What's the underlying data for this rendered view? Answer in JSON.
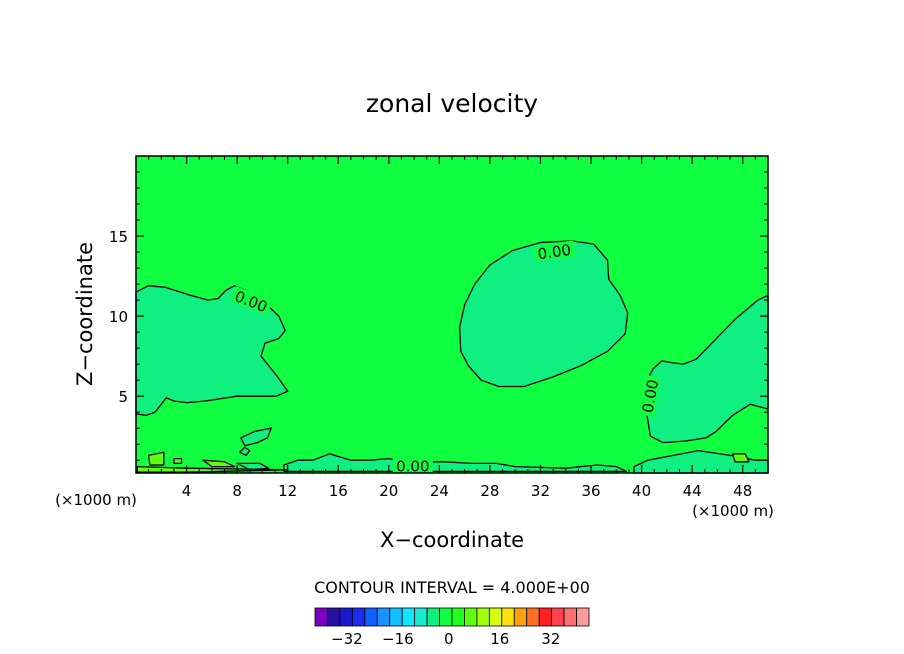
{
  "chart_data": {
    "type": "contour",
    "title": "zonal velocity",
    "xlabel": "X−coordinate",
    "ylabel": "Z−coordinate",
    "x_unit_left": "(×1000 m)",
    "x_unit_right": "(×1000 m)",
    "xlim": [
      0,
      50
    ],
    "ylim": [
      0.2,
      20
    ],
    "x_ticks": [
      4,
      8,
      12,
      16,
      20,
      24,
      28,
      32,
      36,
      40,
      44,
      48
    ],
    "y_ticks": [
      5,
      10,
      15
    ],
    "contour_interval_text": "CONTOUR INTERVAL = 4.000E+00",
    "contour_labels": [
      {
        "text": "0.00",
        "x": 9.1,
        "z": 10.9
      },
      {
        "text": "0.00",
        "x": 33.1,
        "z": 14.0
      },
      {
        "text": "0.00",
        "x": 40.7,
        "z": 5.0
      },
      {
        "text": "0.00",
        "x": 21.9,
        "z": 0.6
      }
    ],
    "regions": [
      {
        "name": "left-cell",
        "level": 0,
        "points": [
          [
            0,
            11.5
          ],
          [
            1,
            11.9
          ],
          [
            2.3,
            11.8
          ],
          [
            4.3,
            11.3
          ],
          [
            5.7,
            11.0
          ],
          [
            6.5,
            11.1
          ],
          [
            7.1,
            11.6
          ],
          [
            7.8,
            11.9
          ],
          [
            8.7,
            11.6
          ],
          [
            10.1,
            10.9
          ],
          [
            11.3,
            10.0
          ],
          [
            11.8,
            9.1
          ],
          [
            11.3,
            8.6
          ],
          [
            10.2,
            8.3
          ],
          [
            9.9,
            7.5
          ],
          [
            10.6,
            6.8
          ],
          [
            11.2,
            6.2
          ],
          [
            12.0,
            5.3
          ],
          [
            11.1,
            5.0
          ],
          [
            9.3,
            5.0
          ],
          [
            8.0,
            5.0
          ],
          [
            5.5,
            4.7
          ],
          [
            4.0,
            4.6
          ],
          [
            3.0,
            4.7
          ],
          [
            2.4,
            4.9
          ],
          [
            1.5,
            4.0
          ],
          [
            0.8,
            3.8
          ],
          [
            0,
            3.9
          ]
        ]
      },
      {
        "name": "central-cell",
        "level": 0,
        "points": [
          [
            25.6,
            9.3
          ],
          [
            26.0,
            10.7
          ],
          [
            26.8,
            12.0
          ],
          [
            28.0,
            13.2
          ],
          [
            29.8,
            14.1
          ],
          [
            32.0,
            14.6
          ],
          [
            34.5,
            14.7
          ],
          [
            36.2,
            14.5
          ],
          [
            37.3,
            13.5
          ],
          [
            37.4,
            12.3
          ],
          [
            38.3,
            11.3
          ],
          [
            38.9,
            10.2
          ],
          [
            38.7,
            8.9
          ],
          [
            37.3,
            7.8
          ],
          [
            35.2,
            6.9
          ],
          [
            33.0,
            6.2
          ],
          [
            30.7,
            5.6
          ],
          [
            28.7,
            5.6
          ],
          [
            27.3,
            6.0
          ],
          [
            26.3,
            6.9
          ],
          [
            25.7,
            7.8
          ]
        ]
      },
      {
        "name": "right-cell",
        "level": 0,
        "points": [
          [
            50,
            11.3
          ],
          [
            49.2,
            11.0
          ],
          [
            47.4,
            9.8
          ],
          [
            45.8,
            8.5
          ],
          [
            44.3,
            7.3
          ],
          [
            43.3,
            7.0
          ],
          [
            42.3,
            7.1
          ],
          [
            41.6,
            7.2
          ],
          [
            40.9,
            6.7
          ],
          [
            40.3,
            5.8
          ],
          [
            40.4,
            3.9
          ],
          [
            40.7,
            2.5
          ],
          [
            41.7,
            2.1
          ],
          [
            43.5,
            2.2
          ],
          [
            45.1,
            2.4
          ],
          [
            45.9,
            2.8
          ],
          [
            47.2,
            3.8
          ],
          [
            48.6,
            4.5
          ],
          [
            50,
            4.2
          ]
        ]
      },
      {
        "name": "bottom-band",
        "level": 0,
        "points": [
          [
            11.7,
            0.7
          ],
          [
            12.8,
            1.0
          ],
          [
            14.0,
            1.0
          ],
          [
            15.3,
            1.4
          ],
          [
            17.0,
            1.0
          ],
          [
            18.5,
            1.0
          ],
          [
            20.0,
            1.1
          ],
          [
            22.0,
            0.9
          ],
          [
            24.4,
            0.9
          ],
          [
            26.5,
            0.8
          ],
          [
            28.5,
            0.8
          ],
          [
            30.0,
            0.6
          ],
          [
            34.0,
            0.5
          ],
          [
            36.5,
            0.7
          ],
          [
            38.0,
            0.6
          ],
          [
            38.8,
            0.3
          ],
          [
            11.7,
            0.3
          ]
        ]
      },
      {
        "name": "bottom-right-band",
        "level": 0,
        "points": [
          [
            39.4,
            0.6
          ],
          [
            40.5,
            1.0
          ],
          [
            42.5,
            1.3
          ],
          [
            44.5,
            1.6
          ],
          [
            47.0,
            1.3
          ],
          [
            49.0,
            1.0
          ],
          [
            50,
            1.0
          ],
          [
            50,
            0.2
          ],
          [
            39.4,
            0.2
          ]
        ]
      },
      {
        "name": "blob-a",
        "level": 0,
        "points": [
          [
            8.3,
            2.4
          ],
          [
            9.4,
            2.8
          ],
          [
            10.7,
            3.0
          ],
          [
            10.4,
            2.4
          ],
          [
            9.6,
            2.1
          ],
          [
            8.6,
            1.9
          ]
        ]
      },
      {
        "name": "blob-b",
        "level": 0,
        "points": [
          [
            8.2,
            1.5
          ],
          [
            8.6,
            1.8
          ],
          [
            9.0,
            1.6
          ],
          [
            8.7,
            1.3
          ]
        ]
      },
      {
        "name": "blob-c",
        "level": 0,
        "points": [
          [
            8.0,
            0.8
          ],
          [
            9.8,
            0.8
          ],
          [
            10.5,
            0.5
          ],
          [
            9.0,
            0.4
          ]
        ]
      },
      {
        "name": "blob-d",
        "level": 4,
        "points": [
          [
            1.0,
            1.3
          ],
          [
            2.2,
            1.5
          ],
          [
            2.2,
            0.7
          ],
          [
            1.1,
            0.7
          ]
        ]
      },
      {
        "name": "blob-e",
        "level": 4,
        "points": [
          [
            5.3,
            1.0
          ],
          [
            7.0,
            0.9
          ],
          [
            7.8,
            0.6
          ],
          [
            6.0,
            0.6
          ]
        ]
      },
      {
        "name": "blob-f",
        "level": 4,
        "points": [
          [
            47.2,
            1.4
          ],
          [
            48.2,
            1.4
          ],
          [
            48.5,
            0.9
          ],
          [
            47.4,
            0.9
          ]
        ]
      },
      {
        "name": "blob-g",
        "level": 4,
        "points": [
          [
            3.0,
            1.1
          ],
          [
            3.6,
            1.1
          ],
          [
            3.6,
            0.8
          ],
          [
            3.0,
            0.8
          ]
        ]
      },
      {
        "name": "blob-h",
        "level": 4,
        "points": [
          [
            0.1,
            0.6
          ],
          [
            4.0,
            0.5
          ],
          [
            12.0,
            0.4
          ],
          [
            4.0,
            0.25
          ],
          [
            0.1,
            0.25
          ]
        ]
      }
    ],
    "colorbar": {
      "levels": [
        -36,
        -32,
        -28,
        -24,
        -20,
        -16,
        -12,
        -8,
        -4,
        0,
        4,
        8,
        12,
        16,
        20,
        24,
        28,
        32,
        36
      ],
      "colors": [
        "#7d00c0",
        "#2a10a0",
        "#1a1acc",
        "#1e2cf0",
        "#1060ff",
        "#1a92ff",
        "#10c0ff",
        "#10e6ff",
        "#18ecd0",
        "#10f080",
        "#10ff40",
        "#20ff20",
        "#60ff10",
        "#a0ff10",
        "#d8ff10",
        "#ffe010",
        "#ffa010",
        "#ff7020",
        "#ff2020",
        "#ff4050",
        "#ff7070",
        "#ff9a9a"
      ],
      "tick_values": [
        -32,
        -16,
        0,
        16,
        32
      ],
      "tick_labels": [
        "−32",
        "−16",
        "0",
        "16",
        "32"
      ]
    },
    "field_colors": {
      "0": "#10ff40",
      "-4": "#10f080",
      "4": "#60ff10"
    }
  }
}
